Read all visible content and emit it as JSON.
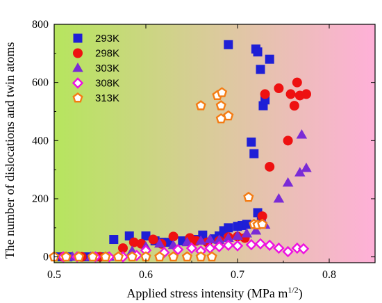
{
  "chart_data": {
    "type": "scatter",
    "xlabel": "Applied stress intensity (MPa m",
    "xlabel_sup": "1/2",
    "xlabel_tail": ")",
    "ylabel": "The number of dislocations and twin atoms",
    "xlim": [
      0.5,
      0.85
    ],
    "ylim": [
      -20,
      800
    ],
    "xticks": [
      0.5,
      0.6,
      0.7,
      0.8
    ],
    "xtick_labels": [
      "0.5",
      "0.6",
      "0.7",
      "0.8"
    ],
    "yticks": [
      0,
      200,
      400,
      600,
      800
    ],
    "ytick_labels": [
      "0",
      "200",
      "400",
      "600",
      "800"
    ],
    "background_gradient": [
      "#b6e55e",
      "#ffb0d8"
    ],
    "legend_position": "top-left",
    "series": [
      {
        "name": "293K",
        "marker": "square",
        "filled": true,
        "color": "#1f1fd6",
        "points": [
          [
            0.505,
            0
          ],
          [
            0.515,
            0
          ],
          [
            0.535,
            0
          ],
          [
            0.545,
            0
          ],
          [
            0.555,
            0
          ],
          [
            0.565,
            60
          ],
          [
            0.582,
            72
          ],
          [
            0.6,
            72
          ],
          [
            0.61,
            55
          ],
          [
            0.617,
            50
          ],
          [
            0.625,
            50
          ],
          [
            0.64,
            55
          ],
          [
            0.655,
            60
          ],
          [
            0.662,
            75
          ],
          [
            0.675,
            62
          ],
          [
            0.68,
            72
          ],
          [
            0.685,
            90
          ],
          [
            0.69,
            100
          ],
          [
            0.7,
            105
          ],
          [
            0.705,
            108
          ],
          [
            0.71,
            112
          ],
          [
            0.715,
            395
          ],
          [
            0.718,
            355
          ],
          [
            0.72,
            715
          ],
          [
            0.722,
            705
          ],
          [
            0.725,
            645
          ],
          [
            0.728,
            520
          ],
          [
            0.73,
            540
          ],
          [
            0.735,
            680
          ],
          [
            0.69,
            730
          ],
          [
            0.722,
            152
          ],
          [
            0.726,
            125
          ]
        ]
      },
      {
        "name": "298K",
        "marker": "circle",
        "filled": true,
        "color": "#ee1111",
        "points": [
          [
            0.51,
            0
          ],
          [
            0.53,
            0
          ],
          [
            0.55,
            0
          ],
          [
            0.575,
            30
          ],
          [
            0.587,
            50
          ],
          [
            0.595,
            45
          ],
          [
            0.608,
            60
          ],
          [
            0.617,
            45
          ],
          [
            0.63,
            70
          ],
          [
            0.648,
            65
          ],
          [
            0.655,
            55
          ],
          [
            0.667,
            50
          ],
          [
            0.68,
            55
          ],
          [
            0.69,
            68
          ],
          [
            0.7,
            70
          ],
          [
            0.708,
            65
          ],
          [
            0.727,
            140
          ],
          [
            0.73,
            560
          ],
          [
            0.735,
            310
          ],
          [
            0.745,
            580
          ],
          [
            0.755,
            400
          ],
          [
            0.758,
            560
          ],
          [
            0.762,
            520
          ],
          [
            0.765,
            600
          ],
          [
            0.768,
            555
          ],
          [
            0.775,
            560
          ]
        ]
      },
      {
        "name": "303K",
        "marker": "triangle",
        "filled": true,
        "color": "#7a2bd6",
        "points": [
          [
            0.52,
            0
          ],
          [
            0.54,
            0
          ],
          [
            0.56,
            0
          ],
          [
            0.585,
            20
          ],
          [
            0.6,
            35
          ],
          [
            0.615,
            45
          ],
          [
            0.63,
            40
          ],
          [
            0.645,
            50
          ],
          [
            0.66,
            55
          ],
          [
            0.67,
            60
          ],
          [
            0.68,
            58
          ],
          [
            0.69,
            65
          ],
          [
            0.7,
            72
          ],
          [
            0.71,
            80
          ],
          [
            0.72,
            90
          ],
          [
            0.73,
            110
          ],
          [
            0.745,
            200
          ],
          [
            0.755,
            255
          ],
          [
            0.768,
            290
          ],
          [
            0.77,
            420
          ],
          [
            0.775,
            305
          ]
        ]
      },
      {
        "name": "308K",
        "marker": "diamond",
        "filled": false,
        "color": "#ee10e0",
        "points": [
          [
            0.51,
            0
          ],
          [
            0.525,
            0
          ],
          [
            0.545,
            0
          ],
          [
            0.56,
            0
          ],
          [
            0.575,
            0
          ],
          [
            0.59,
            5
          ],
          [
            0.6,
            22
          ],
          [
            0.62,
            15
          ],
          [
            0.635,
            25
          ],
          [
            0.65,
            30
          ],
          [
            0.66,
            20
          ],
          [
            0.67,
            30
          ],
          [
            0.68,
            35
          ],
          [
            0.69,
            40
          ],
          [
            0.7,
            38
          ],
          [
            0.715,
            42
          ],
          [
            0.725,
            45
          ],
          [
            0.735,
            40
          ],
          [
            0.745,
            30
          ],
          [
            0.755,
            18
          ],
          [
            0.765,
            30
          ],
          [
            0.772,
            28
          ]
        ]
      },
      {
        "name": "313K",
        "marker": "pentagon",
        "filled": false,
        "color": "#f47c14",
        "points": [
          [
            0.5,
            0
          ],
          [
            0.513,
            0
          ],
          [
            0.527,
            0
          ],
          [
            0.542,
            0
          ],
          [
            0.556,
            0
          ],
          [
            0.57,
            0
          ],
          [
            0.585,
            0
          ],
          [
            0.6,
            0
          ],
          [
            0.615,
            0
          ],
          [
            0.63,
            0
          ],
          [
            0.645,
            0
          ],
          [
            0.66,
            0
          ],
          [
            0.672,
            0
          ],
          [
            0.66,
            520
          ],
          [
            0.678,
            555
          ],
          [
            0.683,
            565
          ],
          [
            0.682,
            520
          ],
          [
            0.682,
            475
          ],
          [
            0.69,
            485
          ],
          [
            0.712,
            205
          ],
          [
            0.718,
            112
          ],
          [
            0.722,
            110
          ],
          [
            0.727,
            112
          ]
        ]
      }
    ]
  }
}
